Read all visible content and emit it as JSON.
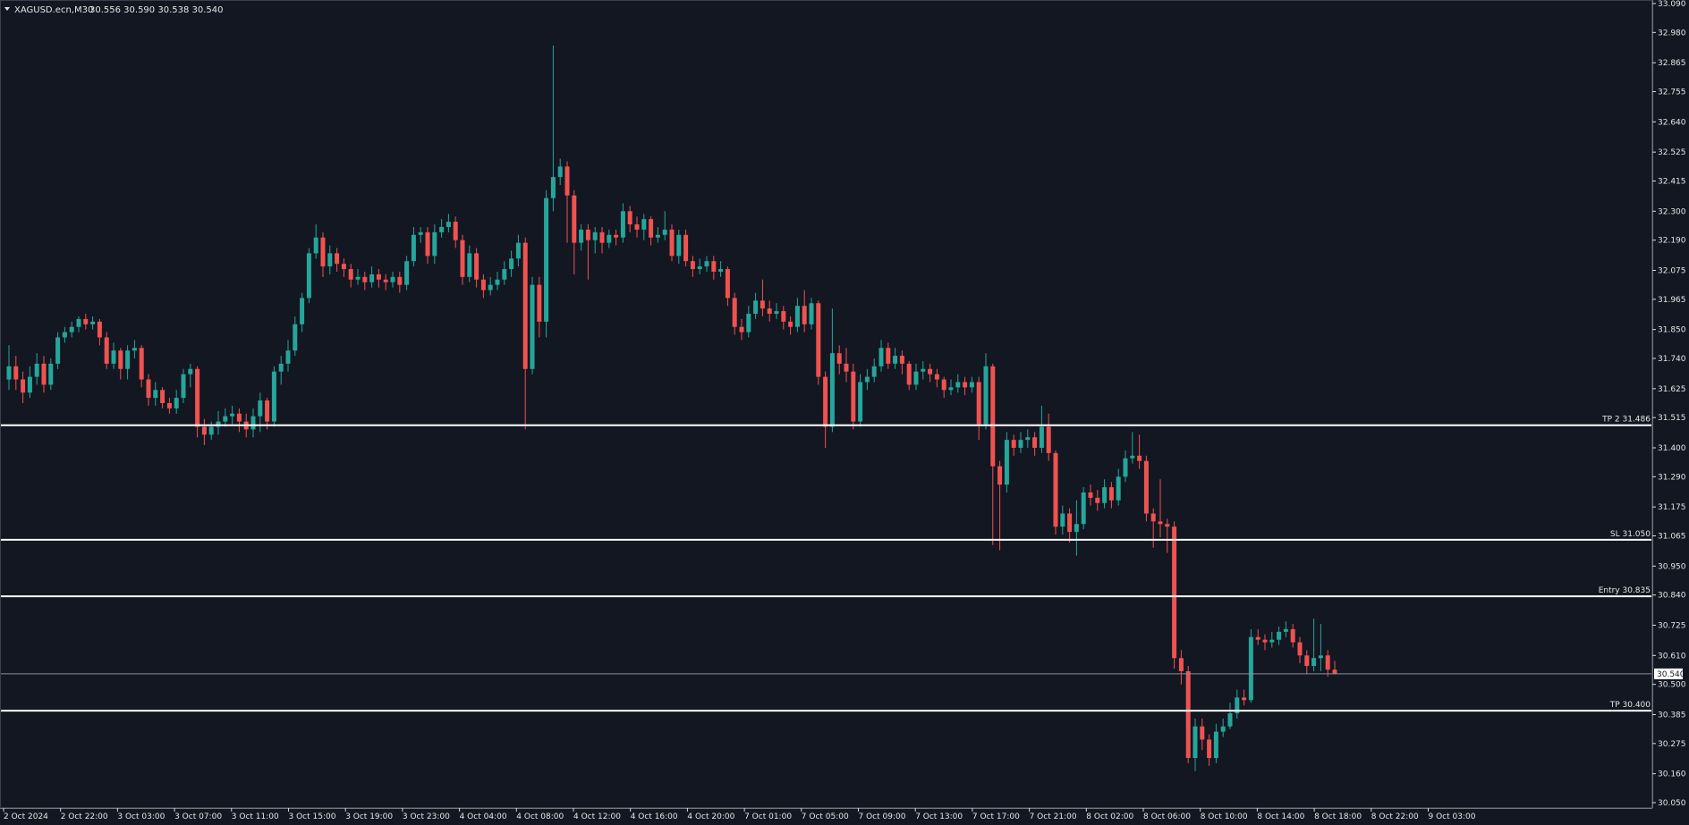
{
  "chart_data": {
    "type": "candlestick",
    "title": "XAGUSD.ecn,M30",
    "ohlc_readout": "30.556 30.590 30.538 30.540",
    "current_price": "30.540",
    "ylim": [
      30.05,
      33.09
    ],
    "y_ticks": [
      "33.090",
      "32.980",
      "32.865",
      "32.755",
      "32.640",
      "32.525",
      "32.415",
      "32.300",
      "32.190",
      "32.075",
      "31.965",
      "31.850",
      "31.740",
      "31.625",
      "31.515",
      "31.400",
      "31.290",
      "31.175",
      "31.065",
      "30.950",
      "30.840",
      "30.725",
      "30.610",
      "30.500",
      "30.385",
      "30.275",
      "30.160",
      "30.050"
    ],
    "x_ticks": [
      "2 Oct 2024",
      "2 Oct 22:00",
      "3 Oct 03:00",
      "3 Oct 07:00",
      "3 Oct 11:00",
      "3 Oct 15:00",
      "3 Oct 19:00",
      "3 Oct 23:00",
      "4 Oct 04:00",
      "4 Oct 08:00",
      "4 Oct 12:00",
      "4 Oct 16:00",
      "4 Oct 20:00",
      "7 Oct 01:00",
      "7 Oct 05:00",
      "7 Oct 09:00",
      "7 Oct 13:00",
      "7 Oct 17:00",
      "7 Oct 21:00",
      "8 Oct 02:00",
      "8 Oct 06:00",
      "8 Oct 10:00",
      "8 Oct 14:00",
      "8 Oct 18:00",
      "8 Oct 22:00",
      "9 Oct 03:00"
    ],
    "levels": [
      {
        "label": "TP 2 31.486",
        "value": 31.486
      },
      {
        "label": "SL 31.050",
        "value": 31.05
      },
      {
        "label": "Entry 30.835",
        "value": 30.835
      },
      {
        "label": "TP 30.400",
        "value": 30.4
      }
    ],
    "candles": [
      [
        31.66,
        31.71,
        31.79,
        31.62
      ],
      [
        31.71,
        31.66,
        31.75,
        31.62
      ],
      [
        31.66,
        31.61,
        31.69,
        31.57
      ],
      [
        31.61,
        31.67,
        31.71,
        31.59
      ],
      [
        31.67,
        31.72,
        31.76,
        31.64
      ],
      [
        31.72,
        31.64,
        31.75,
        31.61
      ],
      [
        31.64,
        31.72,
        31.74,
        31.62
      ],
      [
        31.72,
        31.82,
        31.84,
        31.7
      ],
      [
        31.82,
        31.84,
        31.86,
        31.8
      ],
      [
        31.84,
        31.86,
        31.88,
        31.82
      ],
      [
        31.86,
        31.89,
        31.9,
        31.84
      ],
      [
        31.89,
        31.87,
        31.91,
        31.85
      ],
      [
        31.87,
        31.88,
        31.9,
        31.85
      ],
      [
        31.88,
        31.82,
        31.89,
        31.79
      ],
      [
        31.82,
        31.72,
        31.84,
        31.7
      ],
      [
        31.72,
        31.77,
        31.8,
        31.7
      ],
      [
        31.77,
        31.7,
        31.78,
        31.66
      ],
      [
        31.7,
        31.77,
        31.79,
        31.66
      ],
      [
        31.77,
        31.78,
        31.81,
        31.74
      ],
      [
        31.78,
        31.66,
        31.79,
        31.63
      ],
      [
        31.66,
        31.59,
        31.68,
        31.56
      ],
      [
        31.59,
        31.62,
        31.65,
        31.56
      ],
      [
        31.62,
        31.57,
        31.63,
        31.55
      ],
      [
        31.57,
        31.55,
        31.59,
        31.53
      ],
      [
        31.55,
        31.59,
        31.62,
        31.53
      ],
      [
        31.59,
        31.68,
        31.7,
        31.57
      ],
      [
        31.68,
        31.7,
        31.72,
        31.63
      ],
      [
        31.7,
        31.48,
        31.71,
        31.44
      ],
      [
        31.48,
        31.45,
        31.51,
        31.41
      ],
      [
        31.45,
        31.48,
        31.5,
        31.43
      ],
      [
        31.48,
        31.5,
        31.54,
        31.45
      ],
      [
        31.5,
        31.52,
        31.55,
        31.48
      ],
      [
        31.52,
        31.53,
        31.56,
        31.49
      ],
      [
        31.53,
        31.5,
        31.55,
        31.46
      ],
      [
        31.5,
        31.47,
        31.53,
        31.44
      ],
      [
        31.47,
        31.52,
        31.55,
        31.44
      ],
      [
        31.52,
        31.58,
        31.61,
        31.46
      ],
      [
        31.58,
        31.5,
        31.59,
        31.47
      ],
      [
        31.5,
        31.69,
        31.71,
        31.48
      ],
      [
        31.69,
        31.72,
        31.75,
        31.64
      ],
      [
        31.72,
        31.77,
        31.81,
        31.69
      ],
      [
        31.77,
        31.87,
        31.9,
        31.75
      ],
      [
        31.87,
        31.97,
        31.99,
        31.84
      ],
      [
        31.97,
        32.14,
        32.16,
        31.95
      ],
      [
        32.14,
        32.2,
        32.25,
        32.12
      ],
      [
        32.2,
        32.09,
        32.22,
        32.05
      ],
      [
        32.09,
        32.14,
        32.17,
        32.06
      ],
      [
        32.14,
        32.1,
        32.16,
        32.07
      ],
      [
        32.1,
        32.08,
        32.12,
        32.05
      ],
      [
        32.08,
        32.04,
        32.1,
        32.01
      ],
      [
        32.04,
        32.05,
        32.08,
        32.02
      ],
      [
        32.05,
        32.03,
        32.07,
        32.0
      ],
      [
        32.03,
        32.06,
        32.09,
        32.01
      ],
      [
        32.06,
        32.04,
        32.08,
        32.01
      ],
      [
        32.04,
        32.03,
        32.06,
        32.0
      ],
      [
        32.03,
        32.05,
        32.07,
        32.01
      ],
      [
        32.05,
        32.02,
        32.07,
        31.99
      ],
      [
        32.02,
        32.11,
        32.13,
        32.0
      ],
      [
        32.11,
        32.21,
        32.24,
        32.09
      ],
      [
        32.21,
        32.22,
        32.24,
        32.18
      ],
      [
        32.22,
        32.13,
        32.24,
        32.1
      ],
      [
        32.13,
        32.22,
        32.25,
        32.1
      ],
      [
        32.22,
        32.24,
        32.27,
        32.2
      ],
      [
        32.24,
        32.26,
        32.29,
        32.22
      ],
      [
        32.26,
        32.19,
        32.28,
        32.16
      ],
      [
        32.19,
        32.05,
        32.21,
        32.02
      ],
      [
        32.05,
        32.14,
        32.17,
        32.03
      ],
      [
        32.14,
        32.04,
        32.16,
        32.01
      ],
      [
        32.04,
        32.0,
        32.06,
        31.97
      ],
      [
        32.0,
        32.02,
        32.05,
        31.98
      ],
      [
        32.02,
        32.04,
        32.07,
        32.0
      ],
      [
        32.04,
        32.08,
        32.11,
        32.02
      ],
      [
        32.08,
        32.12,
        32.15,
        32.05
      ],
      [
        32.12,
        32.18,
        32.21,
        32.09
      ],
      [
        32.18,
        31.7,
        32.2,
        31.47
      ],
      [
        31.7,
        32.02,
        32.05,
        31.68
      ],
      [
        32.02,
        31.88,
        32.05,
        31.82
      ],
      [
        31.88,
        32.35,
        32.38,
        31.82
      ],
      [
        32.35,
        32.43,
        32.93,
        32.3
      ],
      [
        32.43,
        32.47,
        32.5,
        32.4
      ],
      [
        32.47,
        32.36,
        32.49,
        32.18
      ],
      [
        32.36,
        32.18,
        32.38,
        32.06
      ],
      [
        32.18,
        32.23,
        32.25,
        32.15
      ],
      [
        32.23,
        32.19,
        32.25,
        32.04
      ],
      [
        32.19,
        32.22,
        32.24,
        32.14
      ],
      [
        32.22,
        32.18,
        32.24,
        32.14
      ],
      [
        32.18,
        32.21,
        32.23,
        32.16
      ],
      [
        32.21,
        32.2,
        32.23,
        32.17
      ],
      [
        32.2,
        32.3,
        32.33,
        32.18
      ],
      [
        32.3,
        32.25,
        32.32,
        32.22
      ],
      [
        32.25,
        32.23,
        32.28,
        32.2
      ],
      [
        32.23,
        32.27,
        32.29,
        32.19
      ],
      [
        32.27,
        32.2,
        32.28,
        32.17
      ],
      [
        32.2,
        32.21,
        32.24,
        32.18
      ],
      [
        32.21,
        32.23,
        32.3,
        32.19
      ],
      [
        32.23,
        32.13,
        32.25,
        32.11
      ],
      [
        32.13,
        32.21,
        32.23,
        32.1
      ],
      [
        32.21,
        32.11,
        32.23,
        32.09
      ],
      [
        32.11,
        32.08,
        32.13,
        32.05
      ],
      [
        32.08,
        32.09,
        32.12,
        32.06
      ],
      [
        32.09,
        32.11,
        32.13,
        32.07
      ],
      [
        32.11,
        32.07,
        32.13,
        32.04
      ],
      [
        32.07,
        32.08,
        32.11,
        32.05
      ],
      [
        32.08,
        31.97,
        32.09,
        31.94
      ],
      [
        31.97,
        31.86,
        31.99,
        31.83
      ],
      [
        31.86,
        31.84,
        31.89,
        31.81
      ],
      [
        31.84,
        31.91,
        31.94,
        31.82
      ],
      [
        31.91,
        31.96,
        31.99,
        31.89
      ],
      [
        31.96,
        31.93,
        32.04,
        31.9
      ],
      [
        31.93,
        31.91,
        31.96,
        31.88
      ],
      [
        31.91,
        31.92,
        31.95,
        31.89
      ],
      [
        31.92,
        31.88,
        31.94,
        31.85
      ],
      [
        31.88,
        31.86,
        31.9,
        31.83
      ],
      [
        31.86,
        31.94,
        31.97,
        31.84
      ],
      [
        31.94,
        31.87,
        32.0,
        31.84
      ],
      [
        31.87,
        31.95,
        31.97,
        31.85
      ],
      [
        31.95,
        31.67,
        31.96,
        31.64
      ],
      [
        31.67,
        31.48,
        31.69,
        31.4
      ],
      [
        31.48,
        31.76,
        31.93,
        31.46
      ],
      [
        31.76,
        31.72,
        31.79,
        31.68
      ],
      [
        31.72,
        31.69,
        31.78,
        31.65
      ],
      [
        31.69,
        31.5,
        31.72,
        31.47
      ],
      [
        31.5,
        31.65,
        31.68,
        31.48
      ],
      [
        31.65,
        31.67,
        31.7,
        31.62
      ],
      [
        31.67,
        31.71,
        31.74,
        31.65
      ],
      [
        31.71,
        31.78,
        31.81,
        31.69
      ],
      [
        31.78,
        31.72,
        31.8,
        31.7
      ],
      [
        31.72,
        31.75,
        31.78,
        31.7
      ],
      [
        31.75,
        31.72,
        31.77,
        31.68
      ],
      [
        31.72,
        31.64,
        31.73,
        31.62
      ],
      [
        31.64,
        31.69,
        31.72,
        31.62
      ],
      [
        31.69,
        31.7,
        31.73,
        31.66
      ],
      [
        31.7,
        31.68,
        31.72,
        31.65
      ],
      [
        31.68,
        31.66,
        31.7,
        31.63
      ],
      [
        31.66,
        31.62,
        31.67,
        31.59
      ],
      [
        31.62,
        31.63,
        31.66,
        31.6
      ],
      [
        31.63,
        31.65,
        31.68,
        31.61
      ],
      [
        31.65,
        31.63,
        31.67,
        31.6
      ],
      [
        31.63,
        31.65,
        31.67,
        31.61
      ],
      [
        31.65,
        31.49,
        31.67,
        31.43
      ],
      [
        31.49,
        31.71,
        31.76,
        31.47
      ],
      [
        31.71,
        31.33,
        31.72,
        31.03
      ],
      [
        31.33,
        31.26,
        31.35,
        31.01
      ],
      [
        31.26,
        31.43,
        31.46,
        31.23
      ],
      [
        31.43,
        31.4,
        31.45,
        31.37
      ],
      [
        31.4,
        31.43,
        31.46,
        31.38
      ],
      [
        31.43,
        31.44,
        31.47,
        31.4
      ],
      [
        31.44,
        31.4,
        31.46,
        31.37
      ],
      [
        31.4,
        31.48,
        31.56,
        31.38
      ],
      [
        31.48,
        31.38,
        31.53,
        31.35
      ],
      [
        31.38,
        31.1,
        31.39,
        31.07
      ],
      [
        31.1,
        31.15,
        31.18,
        31.07
      ],
      [
        31.15,
        31.08,
        31.17,
        31.04
      ],
      [
        31.08,
        31.11,
        31.2,
        30.99
      ],
      [
        31.11,
        31.23,
        31.25,
        31.09
      ],
      [
        31.23,
        31.21,
        31.26,
        31.18
      ],
      [
        31.21,
        31.19,
        31.24,
        31.16
      ],
      [
        31.19,
        31.25,
        31.28,
        31.17
      ],
      [
        31.25,
        31.2,
        31.27,
        31.17
      ],
      [
        31.2,
        31.29,
        31.32,
        31.18
      ],
      [
        31.29,
        31.36,
        31.39,
        31.27
      ],
      [
        31.36,
        31.37,
        31.46,
        31.34
      ],
      [
        31.37,
        31.35,
        31.45,
        31.32
      ],
      [
        31.35,
        31.15,
        31.37,
        31.12
      ],
      [
        31.15,
        31.12,
        31.17,
        31.02
      ],
      [
        31.12,
        31.11,
        31.28,
        31.06
      ],
      [
        31.11,
        31.1,
        31.13,
        31.0
      ],
      [
        31.1,
        30.6,
        31.12,
        30.56
      ],
      [
        30.6,
        30.55,
        30.63,
        30.5
      ],
      [
        30.55,
        30.22,
        30.57,
        30.2
      ],
      [
        30.22,
        30.34,
        30.37,
        30.17
      ],
      [
        30.34,
        30.29,
        30.37,
        30.25
      ],
      [
        30.29,
        30.22,
        30.31,
        30.19
      ],
      [
        30.22,
        30.32,
        30.35,
        30.2
      ],
      [
        30.32,
        30.34,
        30.37,
        30.3
      ],
      [
        30.34,
        30.39,
        30.43,
        30.33
      ],
      [
        30.39,
        30.45,
        30.48,
        30.37
      ],
      [
        30.45,
        30.44,
        30.48,
        30.42
      ],
      [
        30.44,
        30.68,
        30.71,
        30.43
      ],
      [
        30.68,
        30.67,
        30.71,
        30.65
      ],
      [
        30.67,
        30.66,
        30.69,
        30.63
      ],
      [
        30.66,
        30.67,
        30.7,
        30.64
      ],
      [
        30.67,
        30.7,
        30.72,
        30.65
      ],
      [
        30.7,
        30.71,
        30.74,
        30.68
      ],
      [
        30.71,
        30.66,
        30.73,
        30.64
      ],
      [
        30.66,
        30.61,
        30.68,
        30.58
      ],
      [
        30.61,
        30.57,
        30.63,
        30.54
      ],
      [
        30.57,
        30.6,
        30.75,
        30.55
      ],
      [
        30.6,
        30.61,
        30.73,
        30.55
      ],
      [
        30.61,
        30.556,
        30.63,
        30.53
      ],
      [
        30.556,
        30.54,
        30.59,
        30.538
      ]
    ],
    "colors": {
      "background": "#131722",
      "bull": "#26a69a",
      "bear": "#ef5350",
      "level_line": "#ffffff",
      "axis": "#d9d9d9",
      "price_line": "#8a8f9a"
    },
    "grid": false
  }
}
